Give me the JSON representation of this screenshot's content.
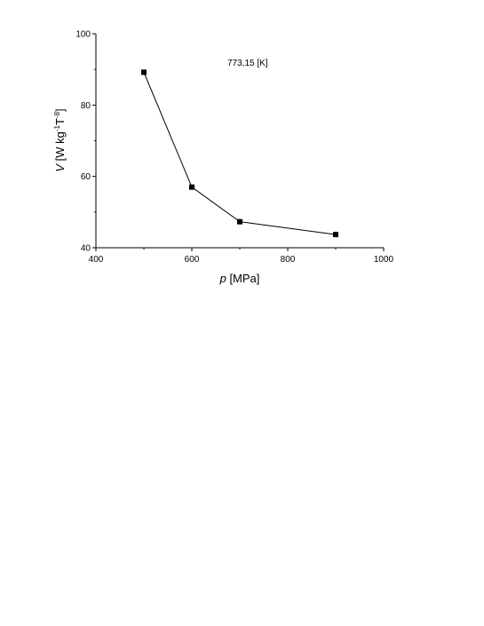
{
  "chart_data": {
    "type": "line",
    "x": [
      500,
      600,
      700,
      900
    ],
    "series": [
      {
        "values": [
          89.2,
          57.0,
          47.3,
          43.7
        ]
      }
    ],
    "xlabel": {
      "symbol": "p",
      "unit": " [MPa]"
    },
    "ylabel": {
      "symbol": "V",
      "unit_main": " [W kg",
      "exp1": "-1",
      "unit_mid": "T",
      "exp2": "-8",
      "unit_end": "]"
    },
    "annotation": "773,15 [K]",
    "xlim": [
      400,
      1000
    ],
    "ylim": [
      40,
      100
    ],
    "xticks": [
      400,
      600,
      800,
      1000
    ],
    "yticks": [
      40,
      60,
      80,
      100
    ],
    "grid": false,
    "marker": "square",
    "color": "#000000"
  }
}
